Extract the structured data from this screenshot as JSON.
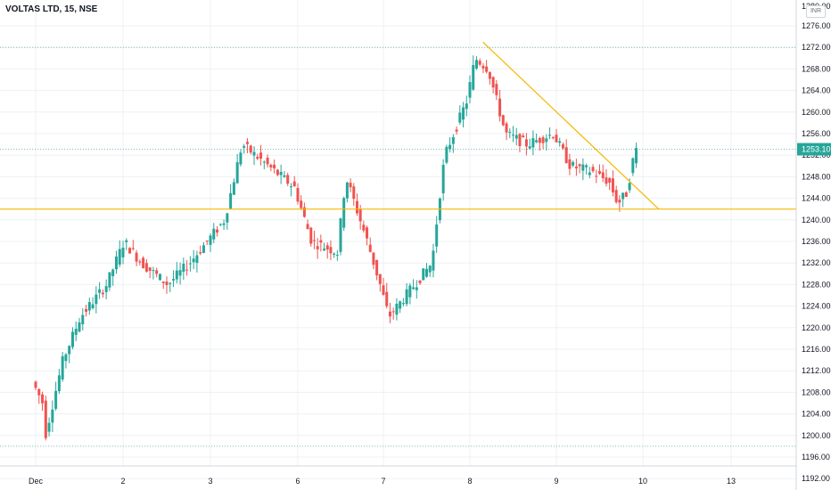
{
  "header": {
    "symbol_title": "VOLTAS LTD, 15, NSE",
    "currency_badge": "INR"
  },
  "price_axis": {
    "ticks": [
      "1276.00",
      "1272.00",
      "1268.00",
      "1264.00",
      "1260.00",
      "1256.00",
      "1252.00",
      "1248.00",
      "1244.00",
      "1240.00",
      "1236.00",
      "1232.00",
      "1228.00",
      "1224.00",
      "1220.00",
      "1216.00",
      "1212.00",
      "1208.00",
      "1204.00",
      "1200.00",
      "1196.00",
      "1192.00"
    ],
    "top_partial": "1280.00",
    "last_price": "1253.10"
  },
  "time_axis": {
    "labels": [
      "Dec",
      "2",
      "3",
      "6",
      "7",
      "8",
      "9",
      "10",
      "13"
    ]
  },
  "colors": {
    "up": "#26a69a",
    "down": "#ef5350",
    "trendline": "#f5b800",
    "grid": "#eef0f3",
    "reference_dotted": "#7dbdb5",
    "last_price_bg": "#26a69a"
  },
  "chart_data": {
    "type": "candlestick",
    "title": "VOLTAS LTD, 15, NSE",
    "ylim": [
      1190,
      1281
    ],
    "yticks_step": 4,
    "x_categories": [
      "Dec",
      "2",
      "3",
      "6",
      "7",
      "8",
      "9",
      "10",
      "13"
    ],
    "last_price": 1253.1,
    "support_level": 1242.0,
    "high_ref_level": 1272.0,
    "low_ref_level": 1198.0,
    "trendline": {
      "from": {
        "day_index": 5.15,
        "price": 1273.0
      },
      "to": {
        "day_index": 7.18,
        "price": 1242.0
      }
    },
    "grid": true,
    "key_points": [
      {
        "day": "Dec",
        "price": 1210
      },
      {
        "day": "Dec",
        "price": 1198
      },
      {
        "day": "2",
        "price": 1236
      },
      {
        "day": "2",
        "price": 1226
      },
      {
        "day": "3",
        "price": 1240
      },
      {
        "day": "3",
        "price": 1254
      },
      {
        "day": "6",
        "price": 1234
      },
      {
        "day": "6",
        "price": 1249
      },
      {
        "day": "7",
        "price": 1220
      },
      {
        "day": "7",
        "price": 1251
      },
      {
        "day": "8",
        "price": 1270
      },
      {
        "day": "9",
        "price": 1249
      },
      {
        "day": "10",
        "price": 1243
      },
      {
        "day": "10",
        "price": 1253.1
      }
    ]
  }
}
